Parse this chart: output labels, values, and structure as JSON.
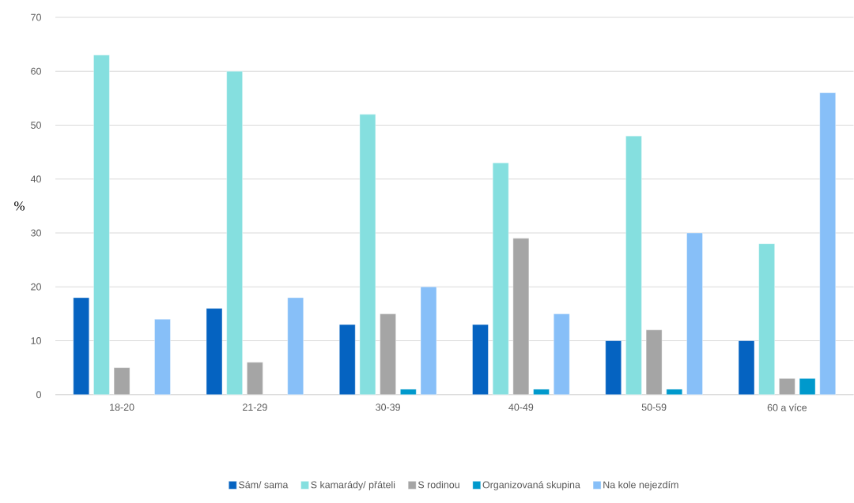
{
  "chart_data": {
    "type": "bar",
    "ylabel": "%",
    "categories": [
      "18-20",
      "21-29",
      "30-39",
      "40-49",
      "50-59",
      "60 a více"
    ],
    "series": [
      {
        "name": "Sám/ sama",
        "color": "#0563c1",
        "values": [
          18,
          16,
          13,
          13,
          10,
          10
        ]
      },
      {
        "name": "S kamarády/ přáteli",
        "color": "#85dfdf",
        "values": [
          63,
          60,
          52,
          43,
          48,
          28
        ]
      },
      {
        "name": "S rodinou",
        "color": "#a5a5a5",
        "values": [
          5,
          6,
          15,
          29,
          12,
          3
        ]
      },
      {
        "name": "Organizovaná skupina",
        "color": "#0099cc",
        "values": [
          null,
          null,
          1,
          1,
          1,
          3
        ]
      },
      {
        "name": "Na kole nejezdím",
        "color": "#87bff8",
        "values": [
          14,
          18,
          20,
          15,
          30,
          56
        ]
      }
    ],
    "ylim": [
      0,
      70
    ],
    "yticks": [
      0,
      10,
      20,
      30,
      40,
      50,
      60,
      70
    ],
    "grid": "y",
    "legend": "bottom"
  }
}
